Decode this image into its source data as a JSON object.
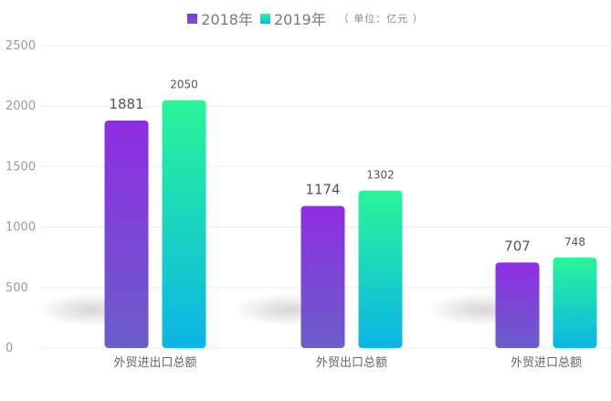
{
  "chart_data": {
    "type": "bar",
    "title": "",
    "unit_note": "（ 单位：亿元 ）",
    "categories": [
      "外贸进出口总额",
      "外贸出口总额",
      "外贸进口总额"
    ],
    "series": [
      {
        "name": "2018年",
        "values": [
          1881,
          1174,
          707
        ],
        "color_top": "#8e2de2",
        "color_bottom": "#6a5ec9"
      },
      {
        "name": "2019年",
        "values": [
          2050,
          1302,
          748
        ],
        "color_top": "#2af598",
        "color_bottom": "#0bb5e6"
      }
    ],
    "ylim": [
      0,
      2500
    ],
    "yticks": [
      0,
      500,
      1000,
      1500,
      2000,
      2500
    ],
    "grid": true,
    "legend_position": "top"
  }
}
